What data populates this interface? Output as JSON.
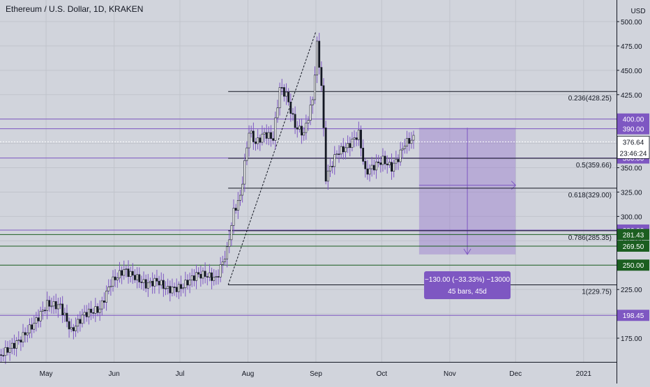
{
  "header": {
    "title": "Ethereum / U.S. Dollar, 1D, KRAKEN",
    "currency": "USD"
  },
  "chart_data": {
    "type": "candlestick",
    "symbol": "Ethereum / U.S. Dollar",
    "interval": "1D",
    "exchange": "KRAKEN",
    "y_ticks": [
      175,
      200,
      225,
      250,
      275,
      300,
      325,
      350,
      375,
      400,
      425,
      450,
      475,
      500
    ],
    "y_tick_labels": [
      "175.00",
      "200.00",
      "225.00",
      "250.00",
      "275.00",
      "300.00",
      "325.00",
      "350.00",
      "375.00",
      "400.00",
      "425.00",
      "450.00",
      "475.00",
      "500.00"
    ],
    "x_tick_labels": [
      {
        "label": "May",
        "date": "2020-05-01"
      },
      {
        "label": "Jun",
        "date": "2020-06-01"
      },
      {
        "label": "Jul",
        "date": "2020-07-01"
      },
      {
        "label": "Aug",
        "date": "2020-08-01"
      },
      {
        "label": "Sep",
        "date": "2020-09-01"
      },
      {
        "label": "Oct",
        "date": "2020-10-01"
      },
      {
        "label": "Nov",
        "date": "2020-11-01"
      },
      {
        "label": "Dec",
        "date": "2020-12-01"
      },
      {
        "label": "2021",
        "date": "2021-01-01"
      }
    ],
    "x_range": [
      "2020-04-10",
      "2021-01-16"
    ],
    "price_path": [
      [
        "2020-04-10",
        158
      ],
      [
        "2020-04-18",
        172
      ],
      [
        "2020-04-25",
        190
      ],
      [
        "2020-05-01",
        210
      ],
      [
        "2020-05-07",
        208
      ],
      [
        "2020-05-12",
        182
      ],
      [
        "2020-05-18",
        200
      ],
      [
        "2020-05-25",
        205
      ],
      [
        "2020-05-30",
        232
      ],
      [
        "2020-06-05",
        245
      ],
      [
        "2020-06-10",
        238
      ],
      [
        "2020-06-15",
        230
      ],
      [
        "2020-06-20",
        234
      ],
      [
        "2020-06-25",
        225
      ],
      [
        "2020-07-01",
        227
      ],
      [
        "2020-07-08",
        240
      ],
      [
        "2020-07-12",
        240
      ],
      [
        "2020-07-17",
        236
      ],
      [
        "2020-07-22",
        265
      ],
      [
        "2020-07-25",
        305
      ],
      [
        "2020-07-28",
        320
      ],
      [
        "2020-08-01",
        388
      ],
      [
        "2020-08-04",
        375
      ],
      [
        "2020-08-08",
        385
      ],
      [
        "2020-08-12",
        380
      ],
      [
        "2020-08-15",
        432
      ],
      [
        "2020-08-18",
        425
      ],
      [
        "2020-08-22",
        393
      ],
      [
        "2020-08-26",
        385
      ],
      [
        "2020-08-30",
        420
      ],
      [
        "2020-09-01",
        476
      ],
      [
        "2020-09-03",
        435
      ],
      [
        "2020-09-05",
        340
      ],
      [
        "2020-09-10",
        365
      ],
      [
        "2020-09-15",
        372
      ],
      [
        "2020-09-20",
        385
      ],
      [
        "2020-09-23",
        345
      ],
      [
        "2020-09-26",
        350
      ],
      [
        "2020-10-01",
        358
      ],
      [
        "2020-10-05",
        350
      ],
      [
        "2020-10-08",
        360
      ],
      [
        "2020-10-11",
        375
      ],
      [
        "2020-10-15",
        380
      ]
    ],
    "last_price": 376.64,
    "countdown": "23:46:24",
    "fib_levels": [
      {
        "ratio": "0.236",
        "value": 428.25,
        "label": "0.236(428.25)"
      },
      {
        "ratio": "0.5",
        "value": 359.66,
        "label": "0.5(359.66)"
      },
      {
        "ratio": "0.618",
        "value": 329.0,
        "label": "0.618(329.00)"
      },
      {
        "ratio": "0.786",
        "value": 285.35,
        "label": "0.786(285.35)"
      },
      {
        "ratio": "1",
        "value": 229.75,
        "label": "1(229.75)"
      }
    ],
    "fib_swing": {
      "start": {
        "date": "2020-07-23",
        "value": 229.75
      },
      "end": {
        "date": "2020-09-01",
        "value": 490
      }
    },
    "horizontal_lines": [
      {
        "value": 400.0,
        "label": "400.00",
        "color": "#7e57c2"
      },
      {
        "value": 390.0,
        "label": "390.00",
        "color": "#7e57c2"
      },
      {
        "value": 360.0,
        "label": "360.00",
        "color": "#7e57c2"
      },
      {
        "value": 286.0,
        "label": "286.00",
        "color": "#7e57c2"
      },
      {
        "value": 281.43,
        "label": "281.43",
        "color": "#1b5e20"
      },
      {
        "value": 269.5,
        "label": "269.50",
        "color": "#1b5e20"
      },
      {
        "value": 250.0,
        "label": "250.00",
        "color": "#1b5e20"
      },
      {
        "value": 198.45,
        "label": "198.45",
        "color": "#7e57c2"
      }
    ],
    "projection": {
      "start_date": "2020-10-18",
      "end_date": "2020-12-01",
      "top": 391,
      "bottom": 261,
      "line1": "−130.00 (−33.33%) −13000",
      "line2": "45 bars, 45d"
    }
  }
}
